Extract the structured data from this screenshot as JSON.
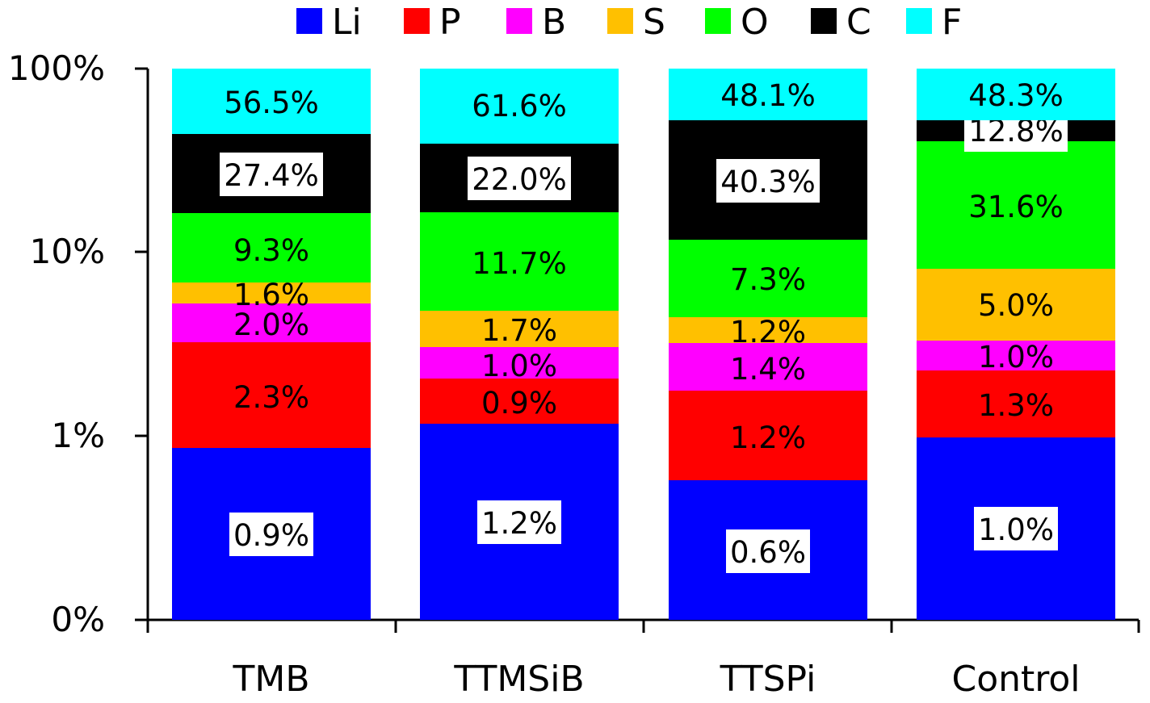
{
  "chart_data": {
    "type": "bar",
    "stacked": true,
    "title": "",
    "xlabel": "",
    "ylabel": "",
    "yscale": "log",
    "yticks": [
      "100%",
      "10%",
      "1%",
      "0%"
    ],
    "legend_position": "top",
    "categories": [
      "TMB",
      "TTMSiB",
      "TTSPi",
      "Control"
    ],
    "series": [
      {
        "name": "Li",
        "color": "#0000ff",
        "values": [
          0.9,
          1.2,
          0.6,
          1.0
        ],
        "labels": [
          "0.9%",
          "1.2%",
          "0.6%",
          "1.0%"
        ],
        "boxed": [
          true,
          true,
          true,
          true
        ]
      },
      {
        "name": "P",
        "color": "#ff0000",
        "values": [
          2.3,
          0.9,
          1.2,
          1.3
        ],
        "labels": [
          "2.3%",
          "0.9%",
          "1.2%",
          "1.3%"
        ],
        "boxed": [
          false,
          false,
          false,
          false
        ]
      },
      {
        "name": "B",
        "color": "#ff00ff",
        "values": [
          2.0,
          1.0,
          1.4,
          1.0
        ],
        "labels": [
          "2.0%",
          "1.0%",
          "1.4%",
          "1.0%"
        ],
        "boxed": [
          false,
          false,
          false,
          false
        ]
      },
      {
        "name": "S",
        "color": "#ffc000",
        "values": [
          1.6,
          1.7,
          1.2,
          5.0
        ],
        "labels": [
          "1.6%",
          "1.7%",
          "1.2%",
          "5.0%"
        ],
        "boxed": [
          false,
          false,
          false,
          false
        ]
      },
      {
        "name": "O",
        "color": "#00ff00",
        "values": [
          9.3,
          11.7,
          7.3,
          31.6
        ],
        "labels": [
          "9.3%",
          "11.7%",
          "7.3%",
          "31.6%"
        ],
        "boxed": [
          false,
          false,
          false,
          false
        ]
      },
      {
        "name": "C",
        "color": "#000000",
        "values": [
          27.4,
          22.0,
          40.3,
          12.8
        ],
        "labels": [
          "27.4%",
          "22.0%",
          "40.3%",
          "12.8%"
        ],
        "boxed": [
          true,
          true,
          true,
          true
        ]
      },
      {
        "name": "F",
        "color": "#00ffff",
        "values": [
          56.5,
          61.6,
          48.1,
          48.3
        ],
        "labels": [
          "56.5%",
          "61.6%",
          "48.1%",
          "48.3%"
        ],
        "boxed": [
          false,
          false,
          false,
          false
        ]
      }
    ]
  }
}
